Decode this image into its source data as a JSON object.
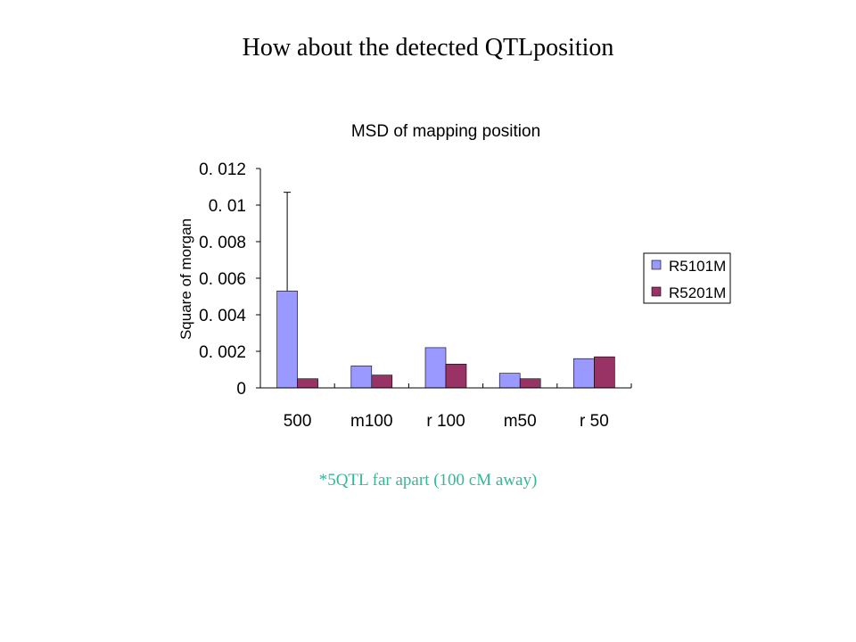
{
  "slide": {
    "title": "How about the detected QTLposition",
    "footnote": "*5QTL far apart (100 cM away)"
  },
  "chart_data": {
    "type": "bar",
    "title": "MSD of  mapping position",
    "ylabel": "Square of  morgan",
    "xlabel": "",
    "categories": [
      "500",
      "m100",
      "r 100",
      "m50",
      "r 50"
    ],
    "series": [
      {
        "name": "R5101M",
        "color": "#9999ff",
        "values": [
          0.0053,
          0.0012,
          0.0022,
          0.0008,
          0.0016
        ]
      },
      {
        "name": "R5201M",
        "color": "#993366",
        "values": [
          0.0005,
          0.0007,
          0.0013,
          0.0005,
          0.0017
        ]
      }
    ],
    "error_bar": {
      "series": "R5101M",
      "category": "500",
      "upper": 0.0107
    },
    "ylim": [
      0,
      0.012
    ],
    "yticks": [
      0,
      0.002,
      0.004,
      0.006,
      0.008,
      0.01,
      0.012
    ],
    "ytick_labels": [
      "0",
      "0. 002",
      "0. 004",
      "0. 006",
      "0. 008",
      "0. 01",
      "0. 012"
    ],
    "grid": false,
    "legend_position": "right"
  }
}
